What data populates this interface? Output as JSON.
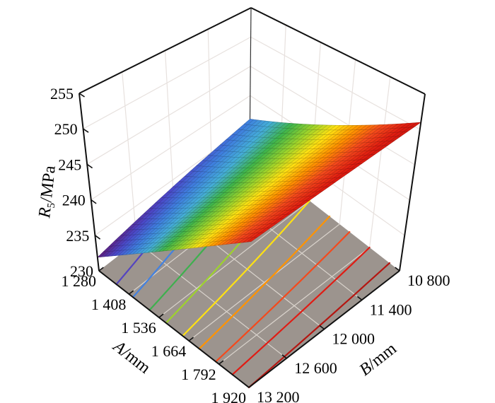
{
  "figure": {
    "background": "#ffffff",
    "description": "3D response surface plot of R5 versus factors A and B"
  },
  "chart_data": {
    "type": "surface",
    "title": "",
    "x_axis": {
      "name": "A",
      "unit": "/mm",
      "label_text": "A/mm",
      "min": 1280,
      "max": 1920,
      "tick_values": [
        1280,
        1408,
        1536,
        1664,
        1792,
        1920
      ],
      "tick_labels": [
        "1 280",
        "1 408",
        "1 536",
        "1 664",
        "1 792",
        "1 920"
      ]
    },
    "y_axis": {
      "name": "B",
      "unit": "/mm",
      "label_text": "B/mm",
      "min": 10800,
      "max": 13200,
      "tick_values": [
        13200,
        12600,
        12000,
        11400,
        10800
      ],
      "tick_labels": [
        "13 200",
        "12 600",
        "12 000",
        "11 400",
        "10 800"
      ]
    },
    "z_axis": {
      "name": "R",
      "subscript": "5",
      "unit": "/MPa",
      "label_text": "R5/MPa",
      "min": 230,
      "max": 255,
      "tick_values": [
        230,
        235,
        240,
        245,
        250,
        255
      ],
      "tick_labels": [
        "230",
        "235",
        "240",
        "245",
        "250",
        "255"
      ]
    },
    "surface": {
      "description": "nearly planar surface rising mainly with A, slightly with decreasing B",
      "z_at_corners": {
        "A1280_B13200": 231.9,
        "A1920_B13200": 250.0,
        "A1280_B10800": 236.0,
        "A1920_B10800": 251.0
      },
      "colormap_range": [
        230,
        255
      ],
      "colormap": [
        [
          0.0,
          "#3a1070"
        ],
        [
          0.08,
          "#5c2080"
        ],
        [
          0.16,
          "#4b48c8"
        ],
        [
          0.24,
          "#3f7ede"
        ],
        [
          0.32,
          "#45aed8"
        ],
        [
          0.4,
          "#3fb54b"
        ],
        [
          0.48,
          "#9cd42c"
        ],
        [
          0.56,
          "#ffe112"
        ],
        [
          0.64,
          "#ff9300"
        ],
        [
          0.72,
          "#f4491c"
        ],
        [
          0.8,
          "#e01c10"
        ],
        [
          1.0,
          "#9e1210"
        ]
      ]
    },
    "contours": {
      "levels": [
        232,
        234,
        236,
        238,
        240,
        242,
        244,
        246,
        248,
        250
      ],
      "colors": [
        "#5a2173",
        "#5444c0",
        "#4381e0",
        "#3eb04e",
        "#9ed32c",
        "#ffe112",
        "#ff9300",
        "#f4491c",
        "#e01c14",
        "#b51611"
      ],
      "width": 2.2
    },
    "colors": {
      "floor": "#9c948e",
      "floor_grid": "#d9d3cc",
      "wall_grid": "#e7e1de",
      "axis": "#111111"
    },
    "legend": null,
    "grid": true
  }
}
